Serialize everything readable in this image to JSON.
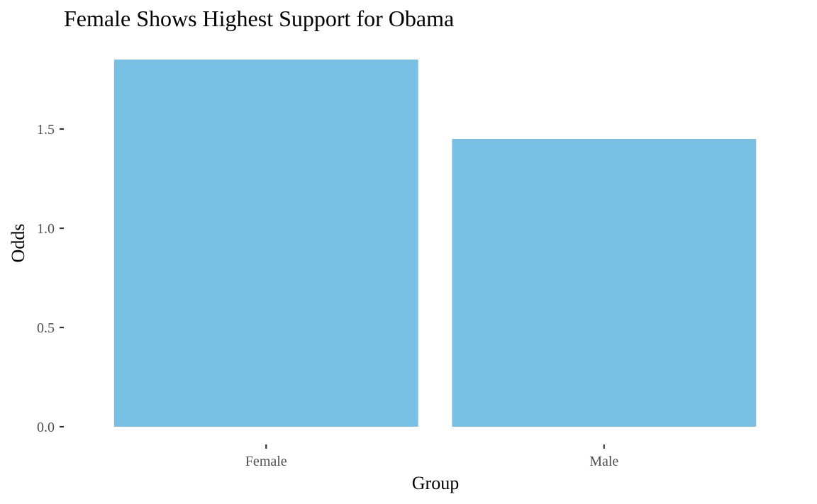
{
  "chart_data": {
    "type": "bar",
    "title": "Female Shows Highest Support for Obama",
    "xlabel": "Group",
    "ylabel": "Odds",
    "categories": [
      "Female",
      "Male"
    ],
    "values": [
      1.85,
      1.45
    ],
    "ylim": [
      0,
      1.85
    ],
    "yticks": [
      0.0,
      0.5,
      1.0,
      1.5
    ],
    "ytick_labels": [
      "0.0",
      "0.5",
      "1.0",
      "1.5"
    ],
    "grid": false,
    "legend": "none",
    "bar_color": "#78C1E4"
  }
}
